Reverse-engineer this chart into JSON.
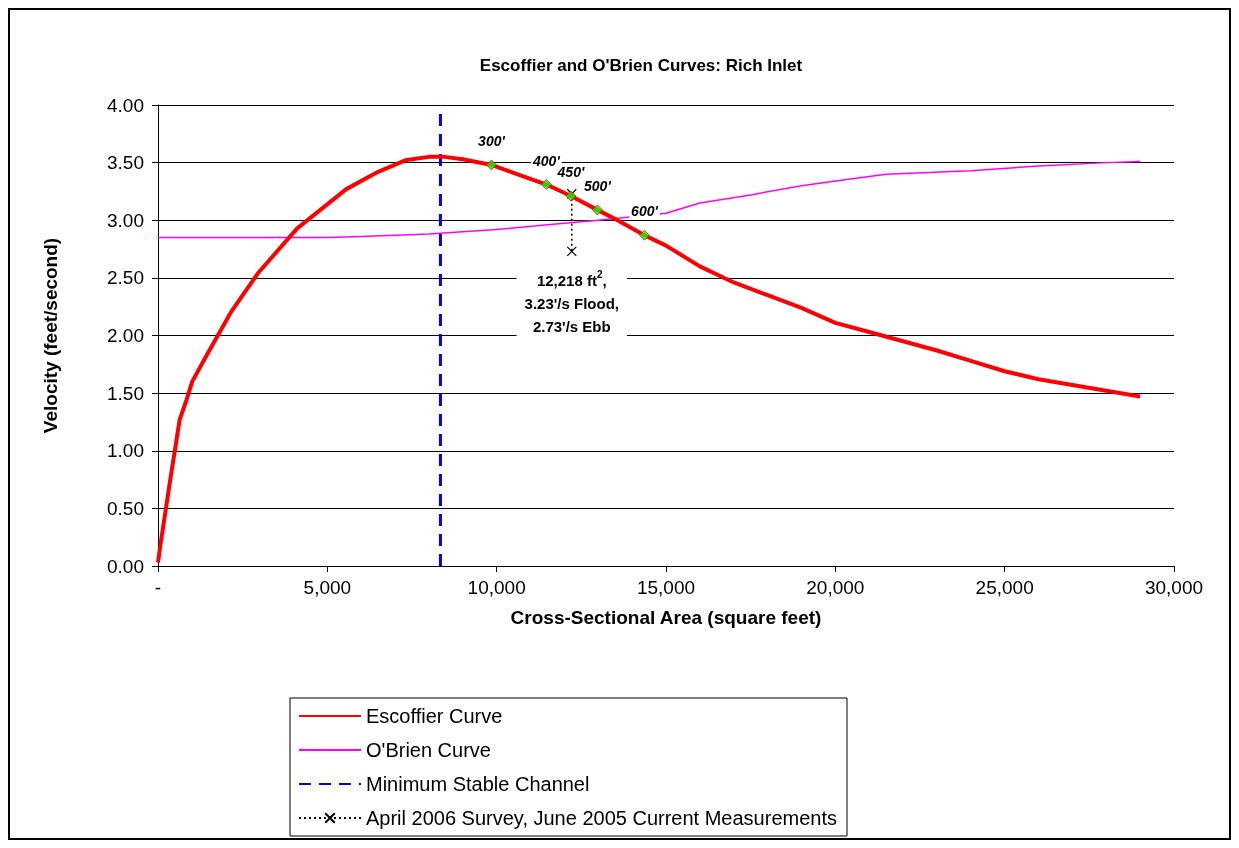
{
  "chart_data": {
    "type": "line",
    "title": "Escoffier and O'Brien Curves: Rich Inlet",
    "xlabel": "Cross-Sectional Area (square feet)",
    "ylabel": "Velocity (feet/second)",
    "xlim": [
      0,
      30000
    ],
    "xticks": [
      {
        "value": 0,
        "label": "-"
      },
      {
        "value": 5000,
        "label": "5,000"
      },
      {
        "value": 10000,
        "label": "10,000"
      },
      {
        "value": 15000,
        "label": "15,000"
      },
      {
        "value": 20000,
        "label": "20,000"
      },
      {
        "value": 25000,
        "label": "25,000"
      },
      {
        "value": 30000,
        "label": "30,000"
      }
    ],
    "ylim": [
      0,
      4
    ],
    "yticks": [
      {
        "value": 0,
        "label": "0.00"
      },
      {
        "value": 0.5,
        "label": "0.50"
      },
      {
        "value": 1,
        "label": "1.00"
      },
      {
        "value": 1.5,
        "label": "1.50"
      },
      {
        "value": 2,
        "label": "2.00"
      },
      {
        "value": 2.5,
        "label": "2.50"
      },
      {
        "value": 3,
        "label": "3.00"
      },
      {
        "value": 3.5,
        "label": "3.50"
      },
      {
        "value": 4,
        "label": "4.00"
      }
    ],
    "grid": "y",
    "legend": "bottom",
    "series": [
      {
        "name": "Escoffier Curve",
        "color": "#ff0000",
        "marker": "none",
        "line_style": "solid",
        "x": [
          0,
          60,
          347,
          640,
          840,
          1010,
          1420,
          2170,
          2950,
          4110,
          5560,
          6500,
          7300,
          8000,
          8460,
          9000,
          9846,
          11468,
          12192,
          12974,
          13500,
          14364,
          15000,
          16000,
          17000,
          18000,
          19000,
          20000,
          21000,
          22000,
          23000,
          24000,
          25000,
          26000,
          27000,
          28000,
          29000
        ],
        "values": [
          0.03,
          0.16,
          0.72,
          1.27,
          1.44,
          1.6,
          1.82,
          2.21,
          2.54,
          2.93,
          3.27,
          3.42,
          3.52,
          3.55,
          3.55,
          3.53,
          3.48,
          3.31,
          3.21,
          3.09,
          3.01,
          2.87,
          2.78,
          2.6,
          2.46,
          2.35,
          2.24,
          2.11,
          2.03,
          1.95,
          1.87,
          1.78,
          1.69,
          1.62,
          1.57,
          1.52,
          1.47
        ]
      },
      {
        "name": "O'Brien Curve",
        "color": "#ff00ff",
        "marker": "none",
        "line_style": "solid",
        "x": [
          0,
          5000,
          6000,
          8000,
          10000,
          11500,
          13000,
          15000,
          16000,
          17500,
          19000,
          20500,
          21500,
          24000,
          26000,
          28000,
          29000
        ],
        "values": [
          2.85,
          2.85,
          2.86,
          2.88,
          2.92,
          2.96,
          3.0,
          3.06,
          3.15,
          3.22,
          3.3,
          3.36,
          3.4,
          3.43,
          3.47,
          3.5,
          3.51
        ]
      },
      {
        "name": "Minimum Stable Channel",
        "color": "#0000ff",
        "marker": "none",
        "line_style": "dashed",
        "x": [
          8340,
          8340
        ],
        "values": [
          0,
          4
        ]
      },
      {
        "name": "April 2006 Survey, June 2005 Current Measurements",
        "color": "#000000",
        "marker": "cross",
        "line_style": "dotted",
        "x": [
          12218,
          12218
        ],
        "values": [
          3.23,
          2.73
        ]
      },
      {
        "type": "scatter",
        "color": "#00ff00",
        "marker": "diamond",
        "x": [
          9846,
          11468,
          12192,
          12974,
          14364
        ],
        "values": [
          3.48,
          3.31,
          3.21,
          3.09,
          2.87
        ]
      }
    ],
    "annotations": [
      {
        "text": "12,218 ft$^{2}$,\n3.23'/s Flood,\n2.73'/s Ebb",
        "x": 12218,
        "y": 2.73
      },
      {
        "text": "300'",
        "x": 9846,
        "y": 3.48
      },
      {
        "text": "400'",
        "x": 11468,
        "y": 3.31
      },
      {
        "text": "450'",
        "x": 12192,
        "y": 3.21
      },
      {
        "text": "500'",
        "x": 12974,
        "y": 3.09
      },
      {
        "text": "600'",
        "x": 14364,
        "y": 2.87
      }
    ]
  }
}
